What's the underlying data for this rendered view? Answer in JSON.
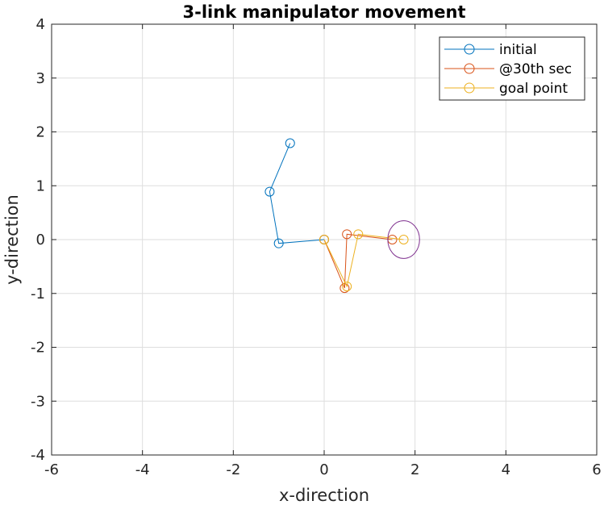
{
  "chart_data": {
    "type": "line",
    "title": "3-link manipulator movement",
    "xlabel": "x-direction",
    "ylabel": "y-direction",
    "xlim": [
      -6,
      6
    ],
    "ylim": [
      -4,
      4
    ],
    "xticks": [
      -6,
      -4,
      -2,
      0,
      2,
      4,
      6
    ],
    "yticks": [
      -4,
      -3,
      -2,
      -1,
      0,
      1,
      2,
      3,
      4
    ],
    "xtick_labels": [
      "-6",
      "-4",
      "-2",
      "0",
      "2",
      "4",
      "6"
    ],
    "ytick_labels": [
      "-4",
      "-3",
      "-2",
      "-1",
      "0",
      "1",
      "2",
      "3",
      "4"
    ],
    "grid": true,
    "legend_position": "top-right",
    "series": [
      {
        "name": "initial",
        "color": "#0072BD",
        "marker": "circle",
        "x": [
          0,
          -1.0,
          -1.2,
          -0.75
        ],
        "y": [
          0,
          -0.07,
          0.89,
          1.79
        ]
      },
      {
        "name": "@30th sec",
        "color": "#D95319",
        "marker": "circle",
        "x": [
          0,
          0.45,
          0.5,
          1.5
        ],
        "y": [
          0,
          -0.9,
          0.1,
          0.0
        ]
      },
      {
        "name": "goal point",
        "color": "#EDB120",
        "marker": "circle",
        "x": [
          0,
          0.5,
          0.75,
          1.75
        ],
        "y": [
          0,
          -0.87,
          0.1,
          0.0
        ]
      }
    ],
    "annotations": [
      {
        "type": "circle",
        "color": "#7E2F8E",
        "cx": 1.75,
        "cy": 0.0,
        "r": 0.35
      }
    ]
  }
}
